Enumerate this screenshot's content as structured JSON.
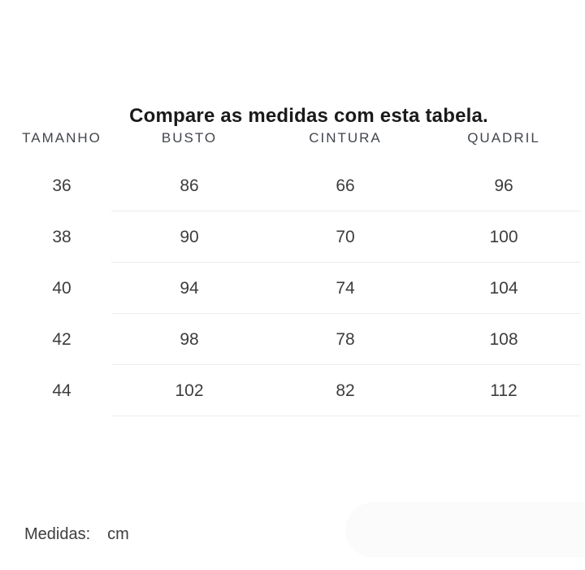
{
  "title": "Compare as medidas com esta tabela.",
  "table": {
    "columns": [
      "TAMANHO",
      "BUSTO",
      "CINTURA",
      "QUADRIL"
    ],
    "rows": [
      [
        "36",
        "86",
        "66",
        "96"
      ],
      [
        "38",
        "90",
        "70",
        "100"
      ],
      [
        "40",
        "94",
        "74",
        "104"
      ],
      [
        "42",
        "98",
        "78",
        "108"
      ],
      [
        "44",
        "102",
        "82",
        "112"
      ]
    ]
  },
  "footer": {
    "label": "Medidas:",
    "unit": "cm"
  },
  "colors": {
    "background": "#ffffff",
    "title_text": "#1a1a1a",
    "header_text": "#42464d",
    "cell_text": "#3d3d3d",
    "divider": "#ececec",
    "faded_panel": "#fbfbfb"
  }
}
